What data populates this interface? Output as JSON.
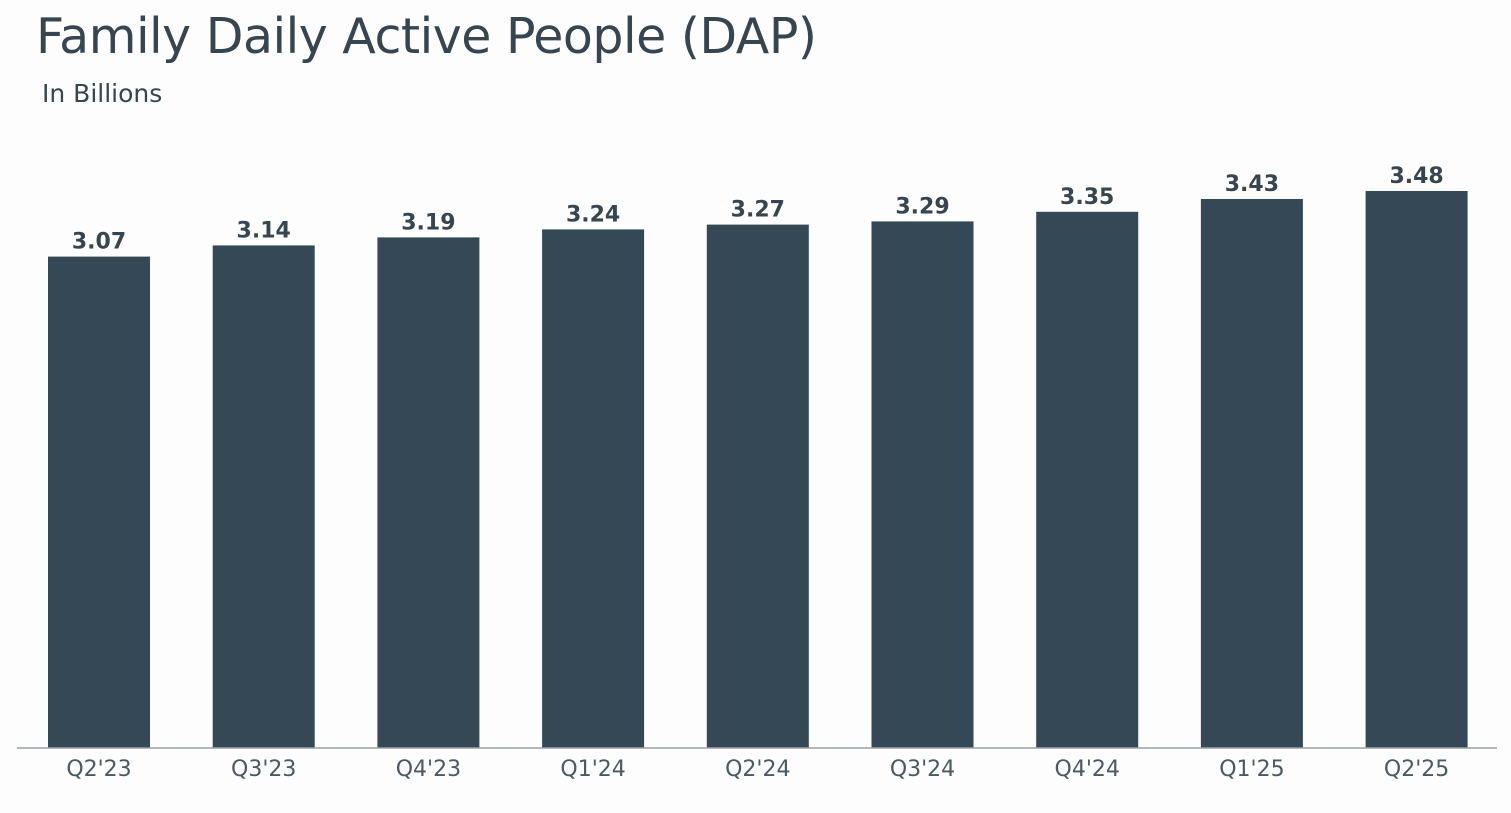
{
  "chart_data": {
    "type": "bar",
    "title": "Family Daily Active People (DAP)",
    "subtitle": "In Billions",
    "categories": [
      "Q2'23",
      "Q3'23",
      "Q4'23",
      "Q1'24",
      "Q2'24",
      "Q3'24",
      "Q4'24",
      "Q1'25",
      "Q2'25"
    ],
    "values": [
      3.07,
      3.14,
      3.19,
      3.24,
      3.27,
      3.29,
      3.35,
      3.43,
      3.48
    ],
    "data_labels": [
      "3.07",
      "3.14",
      "3.19",
      "3.24",
      "3.27",
      "3.29",
      "3.35",
      "3.43",
      "3.48"
    ],
    "xlabel": "",
    "ylabel": "",
    "ylim": [
      0,
      3.48
    ],
    "grid": false,
    "legend": "none",
    "bar_color": "#344955"
  }
}
